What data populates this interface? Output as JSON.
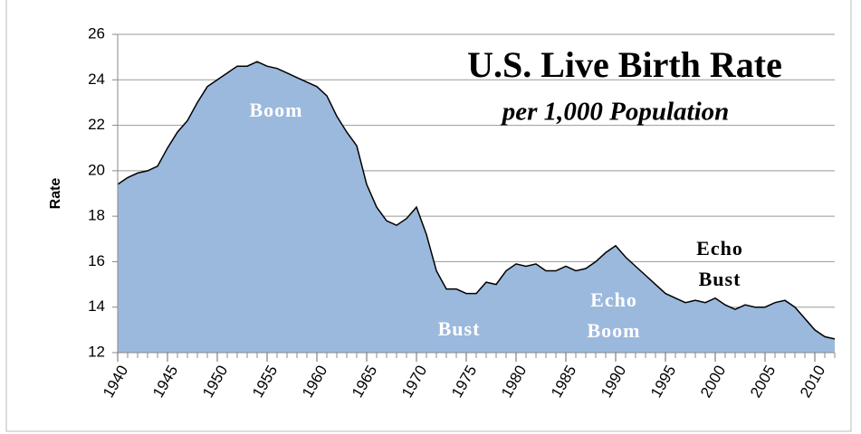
{
  "chart_data": {
    "type": "area",
    "title": "U.S. Live Birth Rate",
    "subtitle": "per 1,000 Population",
    "y_label": "Rate",
    "color": "#9bb9dd",
    "x": [
      1940,
      1941,
      1942,
      1943,
      1944,
      1945,
      1946,
      1947,
      1948,
      1949,
      1950,
      1951,
      1952,
      1953,
      1954,
      1955,
      1956,
      1957,
      1958,
      1959,
      1960,
      1961,
      1962,
      1963,
      1964,
      1965,
      1966,
      1967,
      1968,
      1969,
      1970,
      1971,
      1972,
      1973,
      1974,
      1975,
      1976,
      1977,
      1978,
      1979,
      1980,
      1981,
      1982,
      1983,
      1984,
      1985,
      1986,
      1987,
      1988,
      1989,
      1990,
      1991,
      1992,
      1993,
      1994,
      1995,
      1996,
      1997,
      1998,
      1999,
      2000,
      2001,
      2002,
      2003,
      2004,
      2005,
      2006,
      2007,
      2008,
      2009,
      2010,
      2011,
      2012
    ],
    "values": [
      19.4,
      19.7,
      19.9,
      20.0,
      20.2,
      21.0,
      21.7,
      22.2,
      23.0,
      23.7,
      24.0,
      24.3,
      24.6,
      24.6,
      24.8,
      24.6,
      24.5,
      24.3,
      24.1,
      23.9,
      23.7,
      23.3,
      22.4,
      21.7,
      21.1,
      19.4,
      18.4,
      17.8,
      17.6,
      17.9,
      18.4,
      17.2,
      15.6,
      14.8,
      14.8,
      14.6,
      14.6,
      15.1,
      15.0,
      15.6,
      15.9,
      15.8,
      15.9,
      15.6,
      15.6,
      15.8,
      15.6,
      15.7,
      16.0,
      16.4,
      16.7,
      16.2,
      15.8,
      15.4,
      15.0,
      14.6,
      14.4,
      14.2,
      14.3,
      14.2,
      14.4,
      14.1,
      13.9,
      14.1,
      14.0,
      14.0,
      14.2,
      14.3,
      14.0,
      13.5,
      13.0,
      12.7,
      12.6
    ],
    "xlim": [
      1940,
      2012
    ],
    "xticks": [
      1940,
      1945,
      1950,
      1955,
      1960,
      1965,
      1970,
      1975,
      1980,
      1985,
      1990,
      1995,
      2000,
      2005,
      2010
    ],
    "ylim": [
      12,
      26
    ],
    "yticks": [
      12,
      14,
      16,
      18,
      20,
      22,
      24,
      26
    ],
    "grid": true,
    "annotations": [
      {
        "lines": [
          "Boom"
        ]
      },
      {
        "lines": [
          "Bust"
        ]
      },
      {
        "lines": [
          "Echo",
          "Boom"
        ]
      },
      {
        "lines": [
          "Echo",
          "Bust"
        ]
      }
    ]
  }
}
